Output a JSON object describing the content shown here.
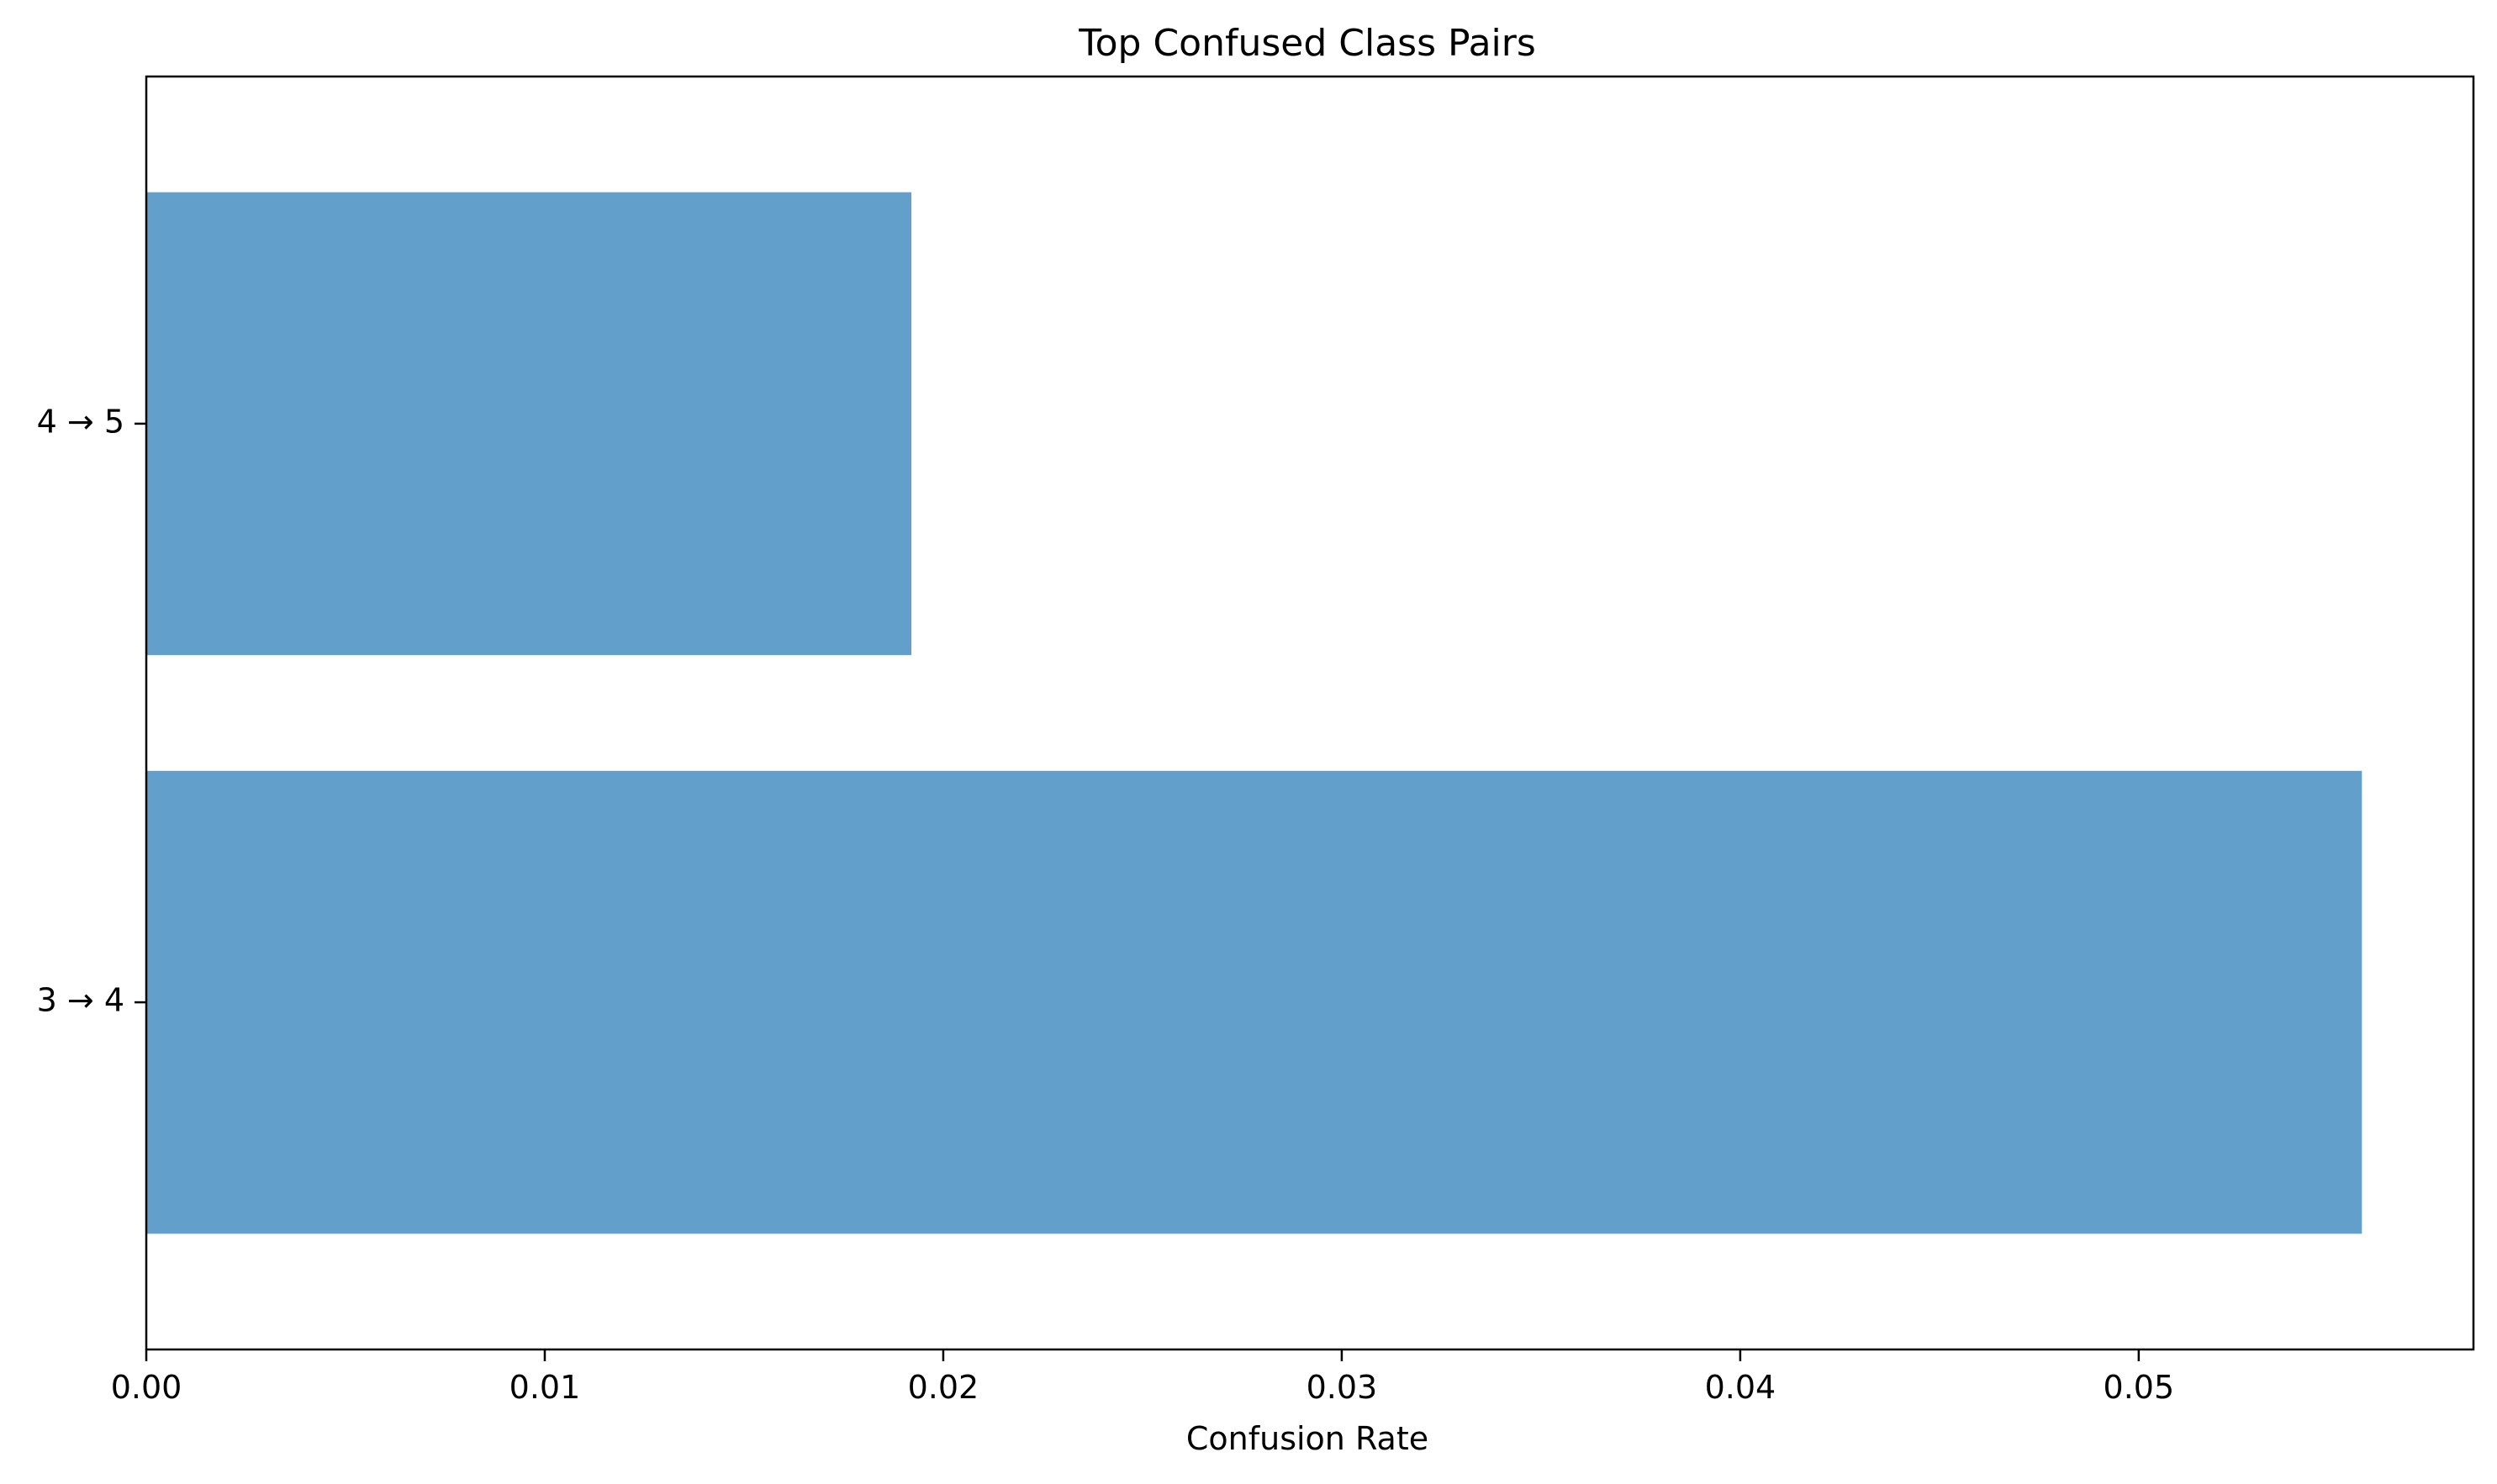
{
  "chart_data": {
    "type": "bar",
    "orientation": "horizontal",
    "title": "Top Confused Class Pairs",
    "xlabel": "Confusion Rate",
    "ylabel": "",
    "categories": [
      "3 → 4",
      "4 → 5"
    ],
    "values": [
      0.0556,
      0.0192
    ],
    "xlim": [
      0,
      0.0584
    ],
    "xticks": [
      "0.00",
      "0.01",
      "0.02",
      "0.03",
      "0.04",
      "0.05"
    ],
    "bar_color": "#629fcb",
    "grid": false,
    "legend": "none"
  }
}
